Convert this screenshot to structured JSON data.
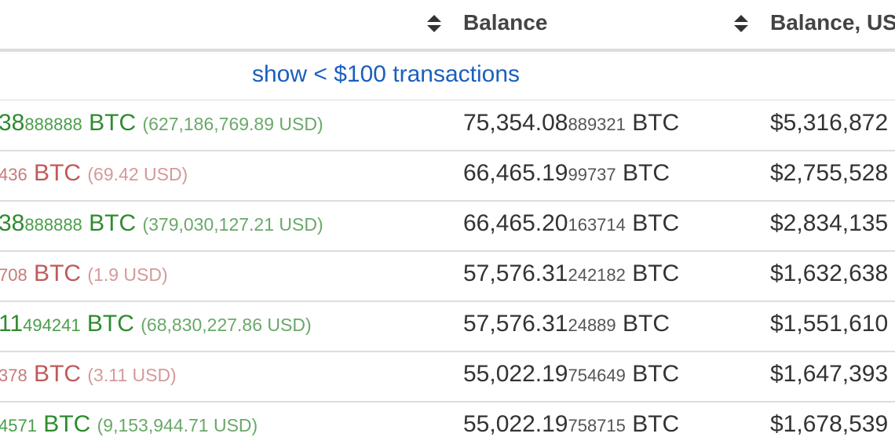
{
  "header": {
    "col_balance": "Balance",
    "col_balance_usd": "Balance, US"
  },
  "show_link": "show < $100 transactions",
  "rows": [
    {
      "tx_main": "38",
      "tx_small": "888888",
      "tx_unit": " BTC ",
      "tx_usd": "(627,186,769.89 USD)",
      "direction": "in",
      "bal_main": "75,354.08",
      "bal_small": "889321",
      "bal_unit": " BTC",
      "usd_balance": "$5,316,872"
    },
    {
      "tx_main": "",
      "tx_small": "436",
      "tx_unit": " BTC ",
      "tx_usd": "(69.42 USD)",
      "direction": "out",
      "bal_main": "66,465.19",
      "bal_small": "99737",
      "bal_unit": " BTC",
      "usd_balance": "$2,755,528"
    },
    {
      "tx_main": "38",
      "tx_small": "888888",
      "tx_unit": " BTC ",
      "tx_usd": "(379,030,127.21 USD)",
      "direction": "in",
      "bal_main": "66,465.20",
      "bal_small": "163714",
      "bal_unit": " BTC",
      "usd_balance": "$2,834,135"
    },
    {
      "tx_main": "",
      "tx_small": "708",
      "tx_unit": " BTC ",
      "tx_usd": "(1.9 USD)",
      "direction": "out",
      "bal_main": "57,576.31",
      "bal_small": "242182",
      "bal_unit": " BTC",
      "usd_balance": "$1,632,638"
    },
    {
      "tx_main": "11",
      "tx_small": "494241",
      "tx_unit": " BTC ",
      "tx_usd": "(68,830,227.86 USD)",
      "direction": "in",
      "bal_main": "57,576.31",
      "bal_small": "24889",
      "bal_unit": " BTC",
      "usd_balance": "$1,551,610"
    },
    {
      "tx_main": "",
      "tx_small": "378",
      "tx_unit": " BTC ",
      "tx_usd": "(3.11 USD)",
      "direction": "out",
      "bal_main": "55,022.19",
      "bal_small": "754649",
      "bal_unit": " BTC",
      "usd_balance": "$1,647,393"
    },
    {
      "tx_main": "",
      "tx_small": "4571",
      "tx_unit": " BTC ",
      "tx_usd": "(9,153,944.71 USD)",
      "direction": "in",
      "bal_main": "55,022.19",
      "bal_small": "758715",
      "bal_unit": " BTC",
      "usd_balance": "$1,678,539"
    }
  ],
  "colors": {
    "incoming": "#2e8b2e",
    "outgoing": "#c05a5a",
    "link": "#1a5fbf",
    "border": "#dddddd"
  },
  "icons": {
    "sort": "sort-updown-icon"
  }
}
